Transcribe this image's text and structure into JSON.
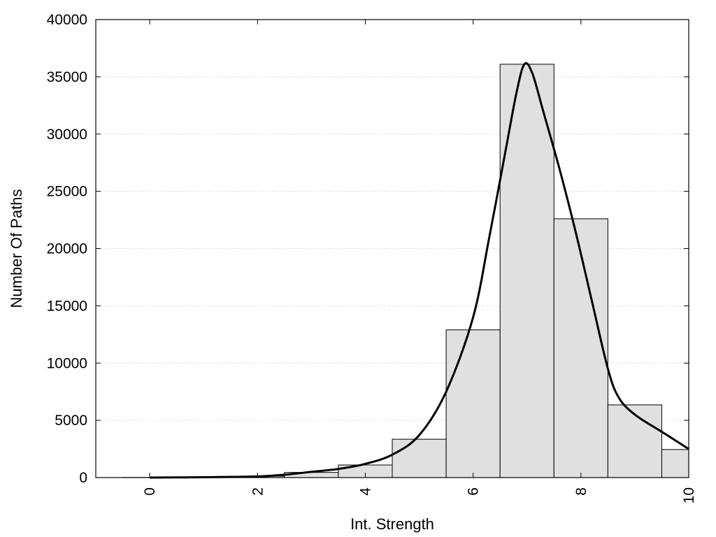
{
  "chart_data": {
    "type": "bar",
    "title": "",
    "xlabel": "Int. Strength",
    "ylabel": "Number Of Paths",
    "xlim": [
      -1,
      10
    ],
    "ylim": [
      0,
      40000
    ],
    "xticks": [
      0,
      2,
      4,
      6,
      8,
      10
    ],
    "yticks": [
      0,
      5000,
      10000,
      15000,
      20000,
      25000,
      30000,
      35000,
      40000
    ],
    "grid": "horizontal dotted",
    "bar_width": 1,
    "bars": {
      "x": [
        0,
        1,
        2,
        3,
        4,
        5,
        6,
        7,
        8,
        9,
        10
      ],
      "values": [
        10,
        30,
        120,
        450,
        1100,
        3350,
        12900,
        36100,
        22600,
        6350,
        2450
      ]
    },
    "curve": {
      "x": [
        0,
        1,
        2,
        2.5,
        3,
        3.5,
        4,
        4.5,
        5,
        5.5,
        6,
        6.3,
        6.6,
        6.8,
        6.95,
        7.1,
        7.3,
        7.6,
        7.9,
        8.2,
        8.5,
        8.7,
        9,
        9.5,
        10
      ],
      "values": [
        0,
        30,
        100,
        250,
        500,
        750,
        1200,
        2000,
        3700,
        7500,
        14000,
        21000,
        28500,
        33500,
        36100,
        35300,
        32000,
        27000,
        21500,
        15500,
        9500,
        7000,
        5500,
        4000,
        2500
      ]
    },
    "colors": {
      "bar_fill": "#e0e0e0",
      "bar_stroke": "#000000",
      "curve": "#000000",
      "grid": "#bfbfbf"
    }
  }
}
